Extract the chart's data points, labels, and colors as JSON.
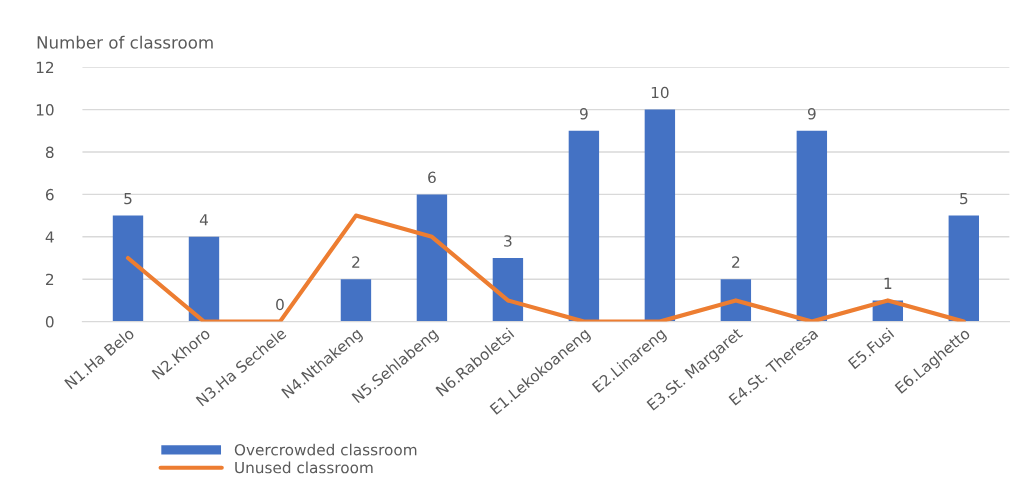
{
  "chart_data": {
    "type": "bar",
    "ylabel": "Number of classroom",
    "categories": [
      "N1.Ha Belo",
      "N2.Khoro",
      "N3.Ha Sechele",
      "N4.Nthakeng",
      "N5.Sehlabeng",
      "N6.Raboletsi",
      "E1.Lekokoaneng",
      "E2.Linareng",
      "E3.St. Margaret",
      "E4.St. Theresa",
      "E5.Fusi",
      "E6.Laghetto"
    ],
    "series": [
      {
        "name": "Overcrowded classroom",
        "color": "#4472c4",
        "values": [
          5,
          4,
          0,
          2,
          6,
          3,
          9,
          10,
          2,
          9,
          1,
          5
        ],
        "value_labels": [
          "5",
          "4",
          "0",
          "2",
          "6",
          "3",
          "9",
          "10",
          "2",
          "9",
          "1",
          "5"
        ]
      },
      {
        "name": "Unused classroom",
        "type": "line",
        "color": "#ed7d31",
        "values": [
          3,
          0,
          0,
          5,
          4,
          1,
          0,
          0,
          1,
          0,
          1,
          0
        ]
      }
    ],
    "ylim": [
      0,
      12
    ],
    "yticks": [
      0,
      2,
      4,
      6,
      8,
      10,
      12
    ],
    "grid": "y",
    "legend": "bottom left"
  }
}
